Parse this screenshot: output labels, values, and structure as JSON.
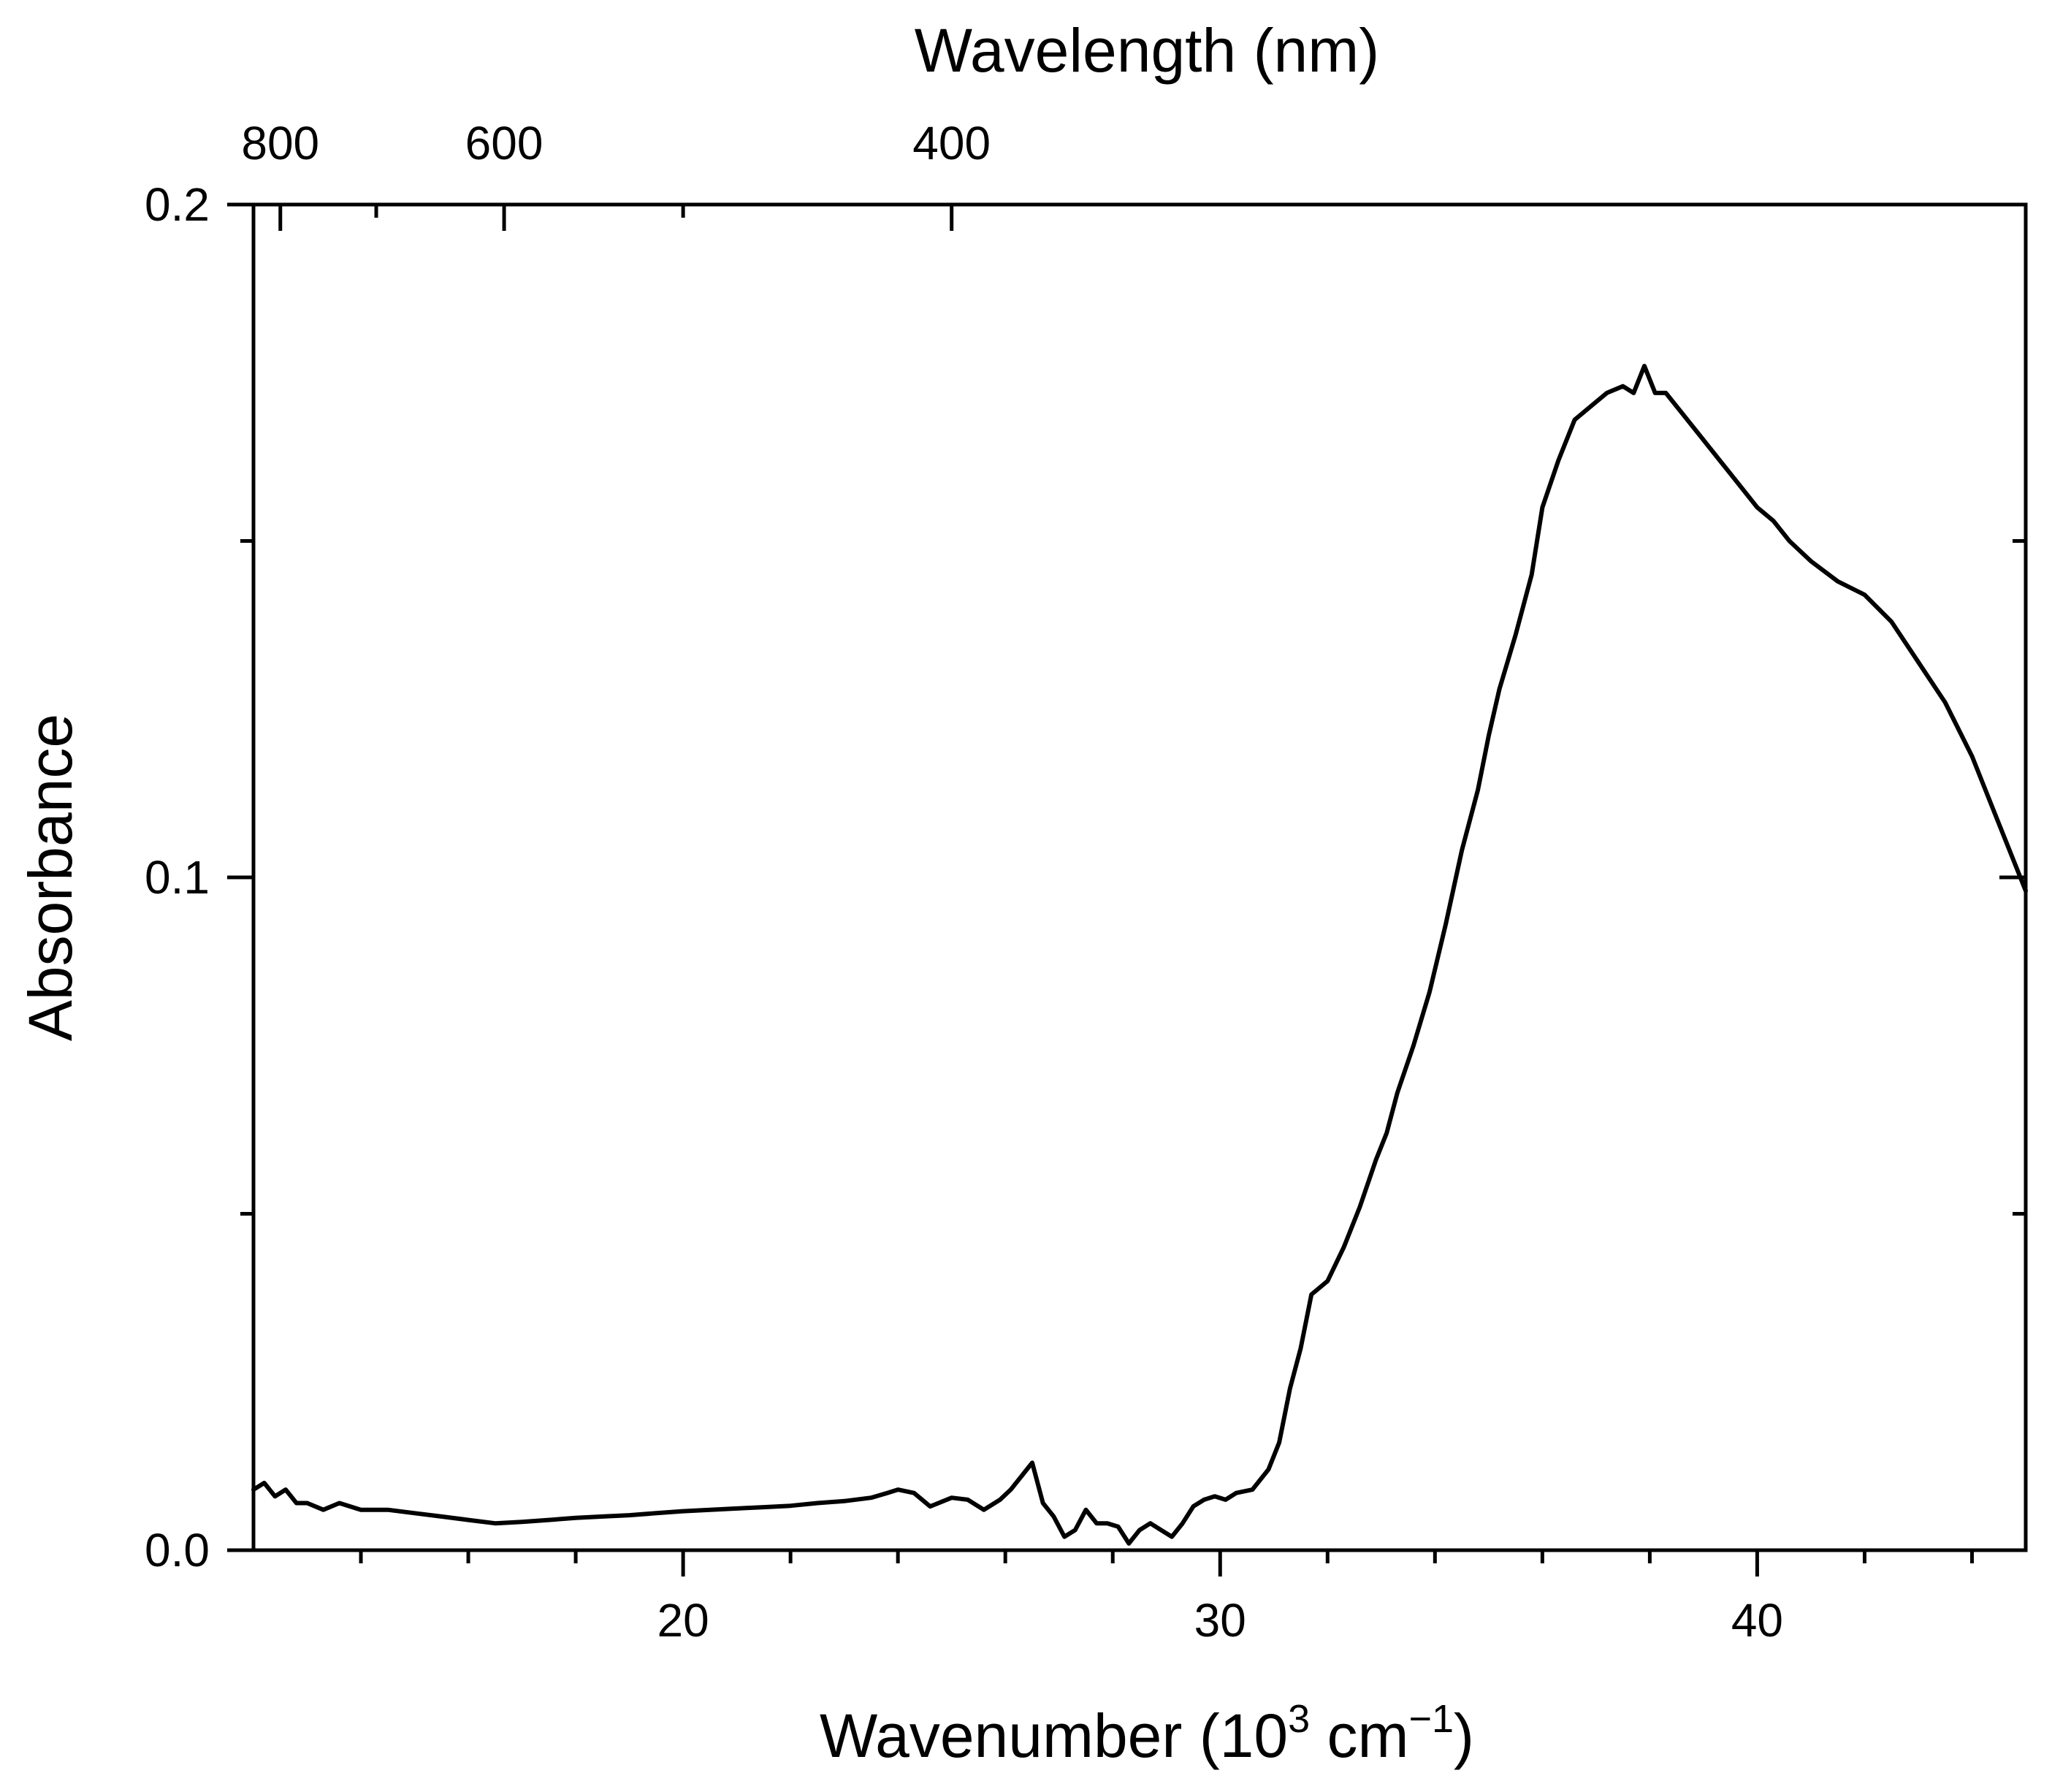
{
  "chart_data": {
    "type": "line",
    "xlabel": "Wavenumber (10",
    "xlabel_sup": "3",
    "xlabel_unit": " cm",
    "xlabel_unit_sup": "−1",
    "xlabel_close": ")",
    "ylabel": "Absorbance",
    "top_axis_label": "Wavelength (nm)",
    "xlim": [
      12,
      45
    ],
    "ylim": [
      0.0,
      0.2
    ],
    "x_ticks": [
      20,
      30,
      40
    ],
    "x_tick_labels": [
      "20",
      "30",
      "40"
    ],
    "x_minor_ticks": [
      14,
      16,
      18,
      22,
      24,
      26,
      28,
      32,
      34,
      36,
      38,
      42,
      44
    ],
    "y_ticks": [
      0.0,
      0.1,
      0.2
    ],
    "y_tick_labels": [
      "0.0",
      "0.1",
      "0.2"
    ],
    "y_minor_ticks": [
      0.05,
      0.15
    ],
    "top_ticks_nm": [
      800,
      600,
      400
    ],
    "top_tick_labels": [
      "800",
      "600",
      "400"
    ],
    "top_minor_ticks_nm": [
      700,
      500
    ],
    "line_color": "#000000",
    "series": [
      {
        "name": "Absorbance",
        "x": [
          12.0,
          12.2,
          12.4,
          12.6,
          12.8,
          13.0,
          13.3,
          13.6,
          14.0,
          14.5,
          15.0,
          15.5,
          16.0,
          16.5,
          17.0,
          17.5,
          18.0,
          18.5,
          19.0,
          19.5,
          20.0,
          20.5,
          21.0,
          21.5,
          22.0,
          22.5,
          23.0,
          23.5,
          23.8,
          24.0,
          24.3,
          24.6,
          25.0,
          25.3,
          25.6,
          25.9,
          26.1,
          26.3,
          26.5,
          26.7,
          26.9,
          27.1,
          27.3,
          27.5,
          27.7,
          27.9,
          28.1,
          28.3,
          28.5,
          28.7,
          28.9,
          29.1,
          29.3,
          29.5,
          29.7,
          29.9,
          30.1,
          30.3,
          30.6,
          30.9,
          31.1,
          31.3,
          31.5,
          31.7,
          32.0,
          32.3,
          32.6,
          32.9,
          33.1,
          33.3,
          33.6,
          33.9,
          34.2,
          34.5,
          34.8,
          35.0,
          35.2,
          35.5,
          35.8,
          36.0,
          36.3,
          36.6,
          36.9,
          37.2,
          37.5,
          37.7,
          37.9,
          38.1,
          38.3,
          38.6,
          38.9,
          39.2,
          39.5,
          39.8,
          40.0,
          40.3,
          40.6,
          41.0,
          41.5,
          42.0,
          42.5,
          43.0,
          43.5,
          44.0,
          44.5,
          45.0
        ],
        "y": [
          0.009,
          0.01,
          0.008,
          0.009,
          0.007,
          0.007,
          0.006,
          0.007,
          0.006,
          0.006,
          0.0055,
          0.005,
          0.0045,
          0.004,
          0.0042,
          0.0045,
          0.0048,
          0.005,
          0.0052,
          0.0055,
          0.0058,
          0.006,
          0.0062,
          0.0064,
          0.0066,
          0.007,
          0.0073,
          0.0078,
          0.0085,
          0.009,
          0.0085,
          0.0065,
          0.0078,
          0.0075,
          0.006,
          0.0075,
          0.009,
          0.011,
          0.013,
          0.007,
          0.005,
          0.002,
          0.003,
          0.006,
          0.004,
          0.004,
          0.0035,
          0.001,
          0.003,
          0.004,
          0.003,
          0.002,
          0.004,
          0.0065,
          0.0075,
          0.008,
          0.0075,
          0.0085,
          0.009,
          0.012,
          0.016,
          0.024,
          0.03,
          0.038,
          0.04,
          0.045,
          0.051,
          0.058,
          0.062,
          0.068,
          0.075,
          0.083,
          0.093,
          0.104,
          0.113,
          0.121,
          0.128,
          0.136,
          0.145,
          0.155,
          0.162,
          0.168,
          0.17,
          0.172,
          0.173,
          0.172,
          0.176,
          0.172,
          0.172,
          0.169,
          0.166,
          0.163,
          0.16,
          0.157,
          0.155,
          0.153,
          0.15,
          0.147,
          0.144,
          0.142,
          0.138,
          0.132,
          0.126,
          0.118,
          0.108,
          0.098
        ]
      }
    ]
  }
}
